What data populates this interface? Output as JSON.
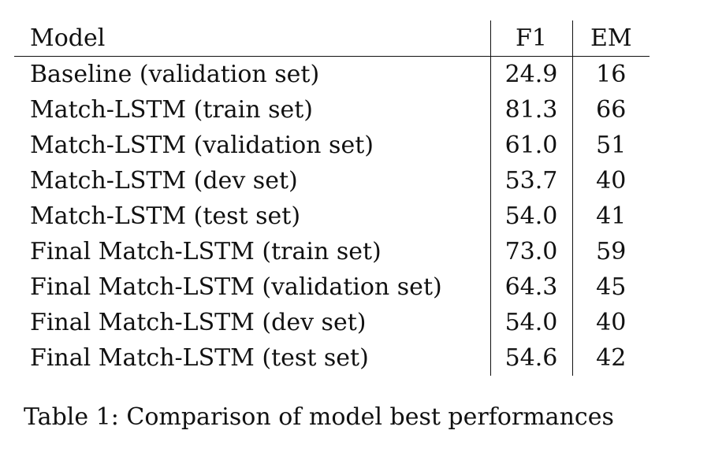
{
  "table": {
    "headers": {
      "model": "Model",
      "f1": "F1",
      "em": "EM"
    },
    "rows": [
      {
        "model": "Baseline (validation set)",
        "f1": "24.9",
        "em": "16"
      },
      {
        "model": "Match-LSTM (train set)",
        "f1": "81.3",
        "em": "66"
      },
      {
        "model": "Match-LSTM (validation set)",
        "f1": "61.0",
        "em": "51"
      },
      {
        "model": "Match-LSTM (dev set)",
        "f1": "53.7",
        "em": "40"
      },
      {
        "model": "Match-LSTM (test set)",
        "f1": "54.0",
        "em": "41"
      },
      {
        "model": "Final Match-LSTM (train set)",
        "f1": "73.0",
        "em": "59"
      },
      {
        "model": "Final Match-LSTM (validation set)",
        "f1": "64.3",
        "em": "45"
      },
      {
        "model": "Final Match-LSTM (dev set)",
        "f1": "54.0",
        "em": "40"
      },
      {
        "model": "Final Match-LSTM (test set)",
        "f1": "54.6",
        "em": "42"
      }
    ]
  },
  "caption": "Table 1: Comparison of model best performances"
}
